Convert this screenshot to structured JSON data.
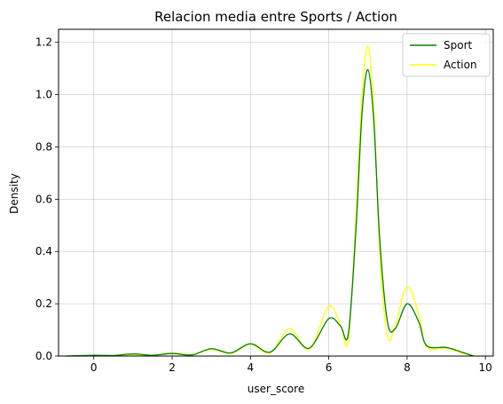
{
  "chart_data": {
    "type": "line",
    "title": "Relacion media entre Sports / Action",
    "xlabel": "user_score",
    "ylabel": "Density",
    "xlim": [
      -0.9,
      10.2
    ],
    "ylim": [
      0,
      1.25
    ],
    "xticks": [
      0,
      2,
      4,
      6,
      8,
      10
    ],
    "xtick_labels": [
      "0",
      "2",
      "4",
      "6",
      "8",
      "10"
    ],
    "yticks": [
      0.0,
      0.2,
      0.4,
      0.6,
      0.8,
      1.0,
      1.2
    ],
    "ytick_labels": [
      "0.0",
      "0.2",
      "0.4",
      "0.6",
      "0.8",
      "1.0",
      "1.2"
    ],
    "grid": true,
    "legend_position": "upper-right",
    "series": [
      {
        "name": "Sport",
        "color": "#008000",
        "x": [
          -0.7,
          0.0,
          0.5,
          1.0,
          1.5,
          2.0,
          2.5,
          3.0,
          3.5,
          4.0,
          4.5,
          5.0,
          5.5,
          6.0,
          6.3,
          6.5,
          6.7,
          6.85,
          7.0,
          7.15,
          7.3,
          7.5,
          7.7,
          8.0,
          8.3,
          8.5,
          9.0,
          9.4,
          9.7
        ],
        "y": [
          0.0,
          0.003,
          0.002,
          0.008,
          0.003,
          0.01,
          0.004,
          0.028,
          0.012,
          0.047,
          0.015,
          0.085,
          0.03,
          0.143,
          0.115,
          0.085,
          0.5,
          0.93,
          1.095,
          0.9,
          0.45,
          0.13,
          0.105,
          0.2,
          0.13,
          0.04,
          0.033,
          0.015,
          0.0
        ]
      },
      {
        "name": "Action",
        "color": "#ffff00",
        "x": [
          -0.7,
          0.0,
          0.5,
          1.0,
          1.5,
          2.0,
          2.5,
          3.0,
          3.5,
          4.0,
          4.5,
          5.0,
          5.5,
          6.0,
          6.3,
          6.5,
          6.7,
          6.85,
          7.0,
          7.15,
          7.3,
          7.5,
          7.7,
          8.0,
          8.3,
          8.5,
          9.0,
          9.4,
          9.7
        ],
        "y": [
          0.0,
          0.002,
          0.002,
          0.005,
          0.003,
          0.012,
          0.005,
          0.026,
          0.01,
          0.045,
          0.012,
          0.105,
          0.025,
          0.19,
          0.12,
          0.06,
          0.55,
          1.0,
          1.185,
          0.95,
          0.4,
          0.075,
          0.12,
          0.265,
          0.16,
          0.035,
          0.03,
          0.012,
          0.0
        ]
      }
    ]
  }
}
